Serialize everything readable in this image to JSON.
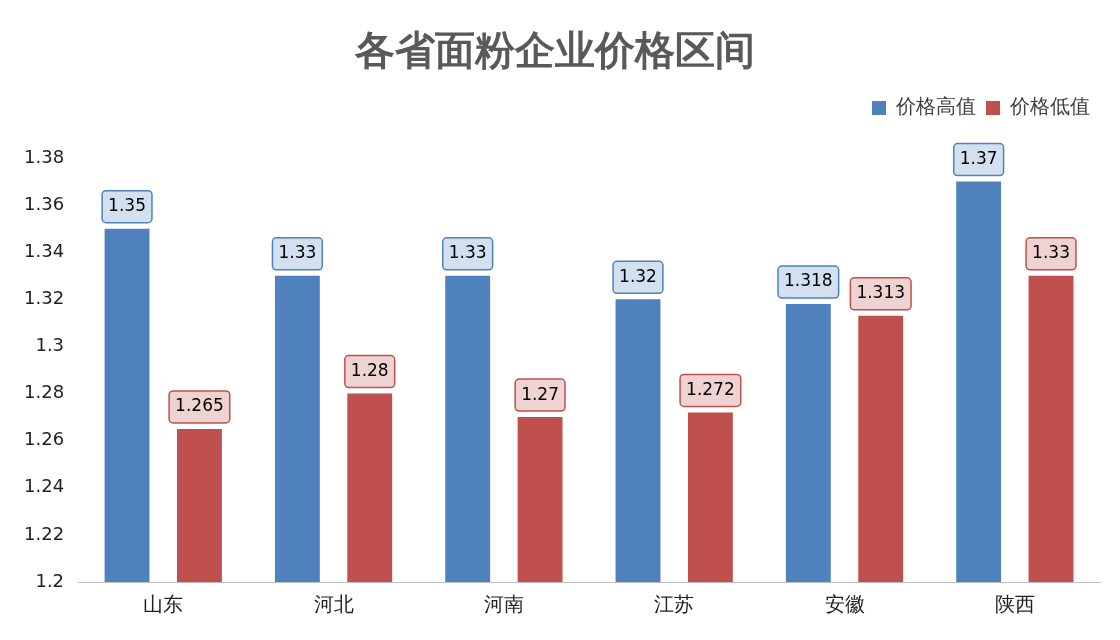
{
  "chart_data": {
    "type": "bar",
    "title": "各省面粉企业价格区间",
    "categories": [
      "山东",
      "河北",
      "河南",
      "江苏",
      "安徽",
      "陕西"
    ],
    "series": [
      {
        "name": "价格高值",
        "color": "#4f81bd",
        "values": [
          1.35,
          1.33,
          1.33,
          1.32,
          1.318,
          1.37
        ]
      },
      {
        "name": "价格低值",
        "color": "#c0504d",
        "values": [
          1.265,
          1.28,
          1.27,
          1.272,
          1.313,
          1.33
        ]
      }
    ],
    "ylim": [
      1.2,
      1.38
    ],
    "yticks": [
      1.2,
      1.22,
      1.24,
      1.26,
      1.28,
      1.3,
      1.32,
      1.34,
      1.36,
      1.38
    ],
    "grid": false,
    "legend": "top right",
    "data_labels": true
  }
}
